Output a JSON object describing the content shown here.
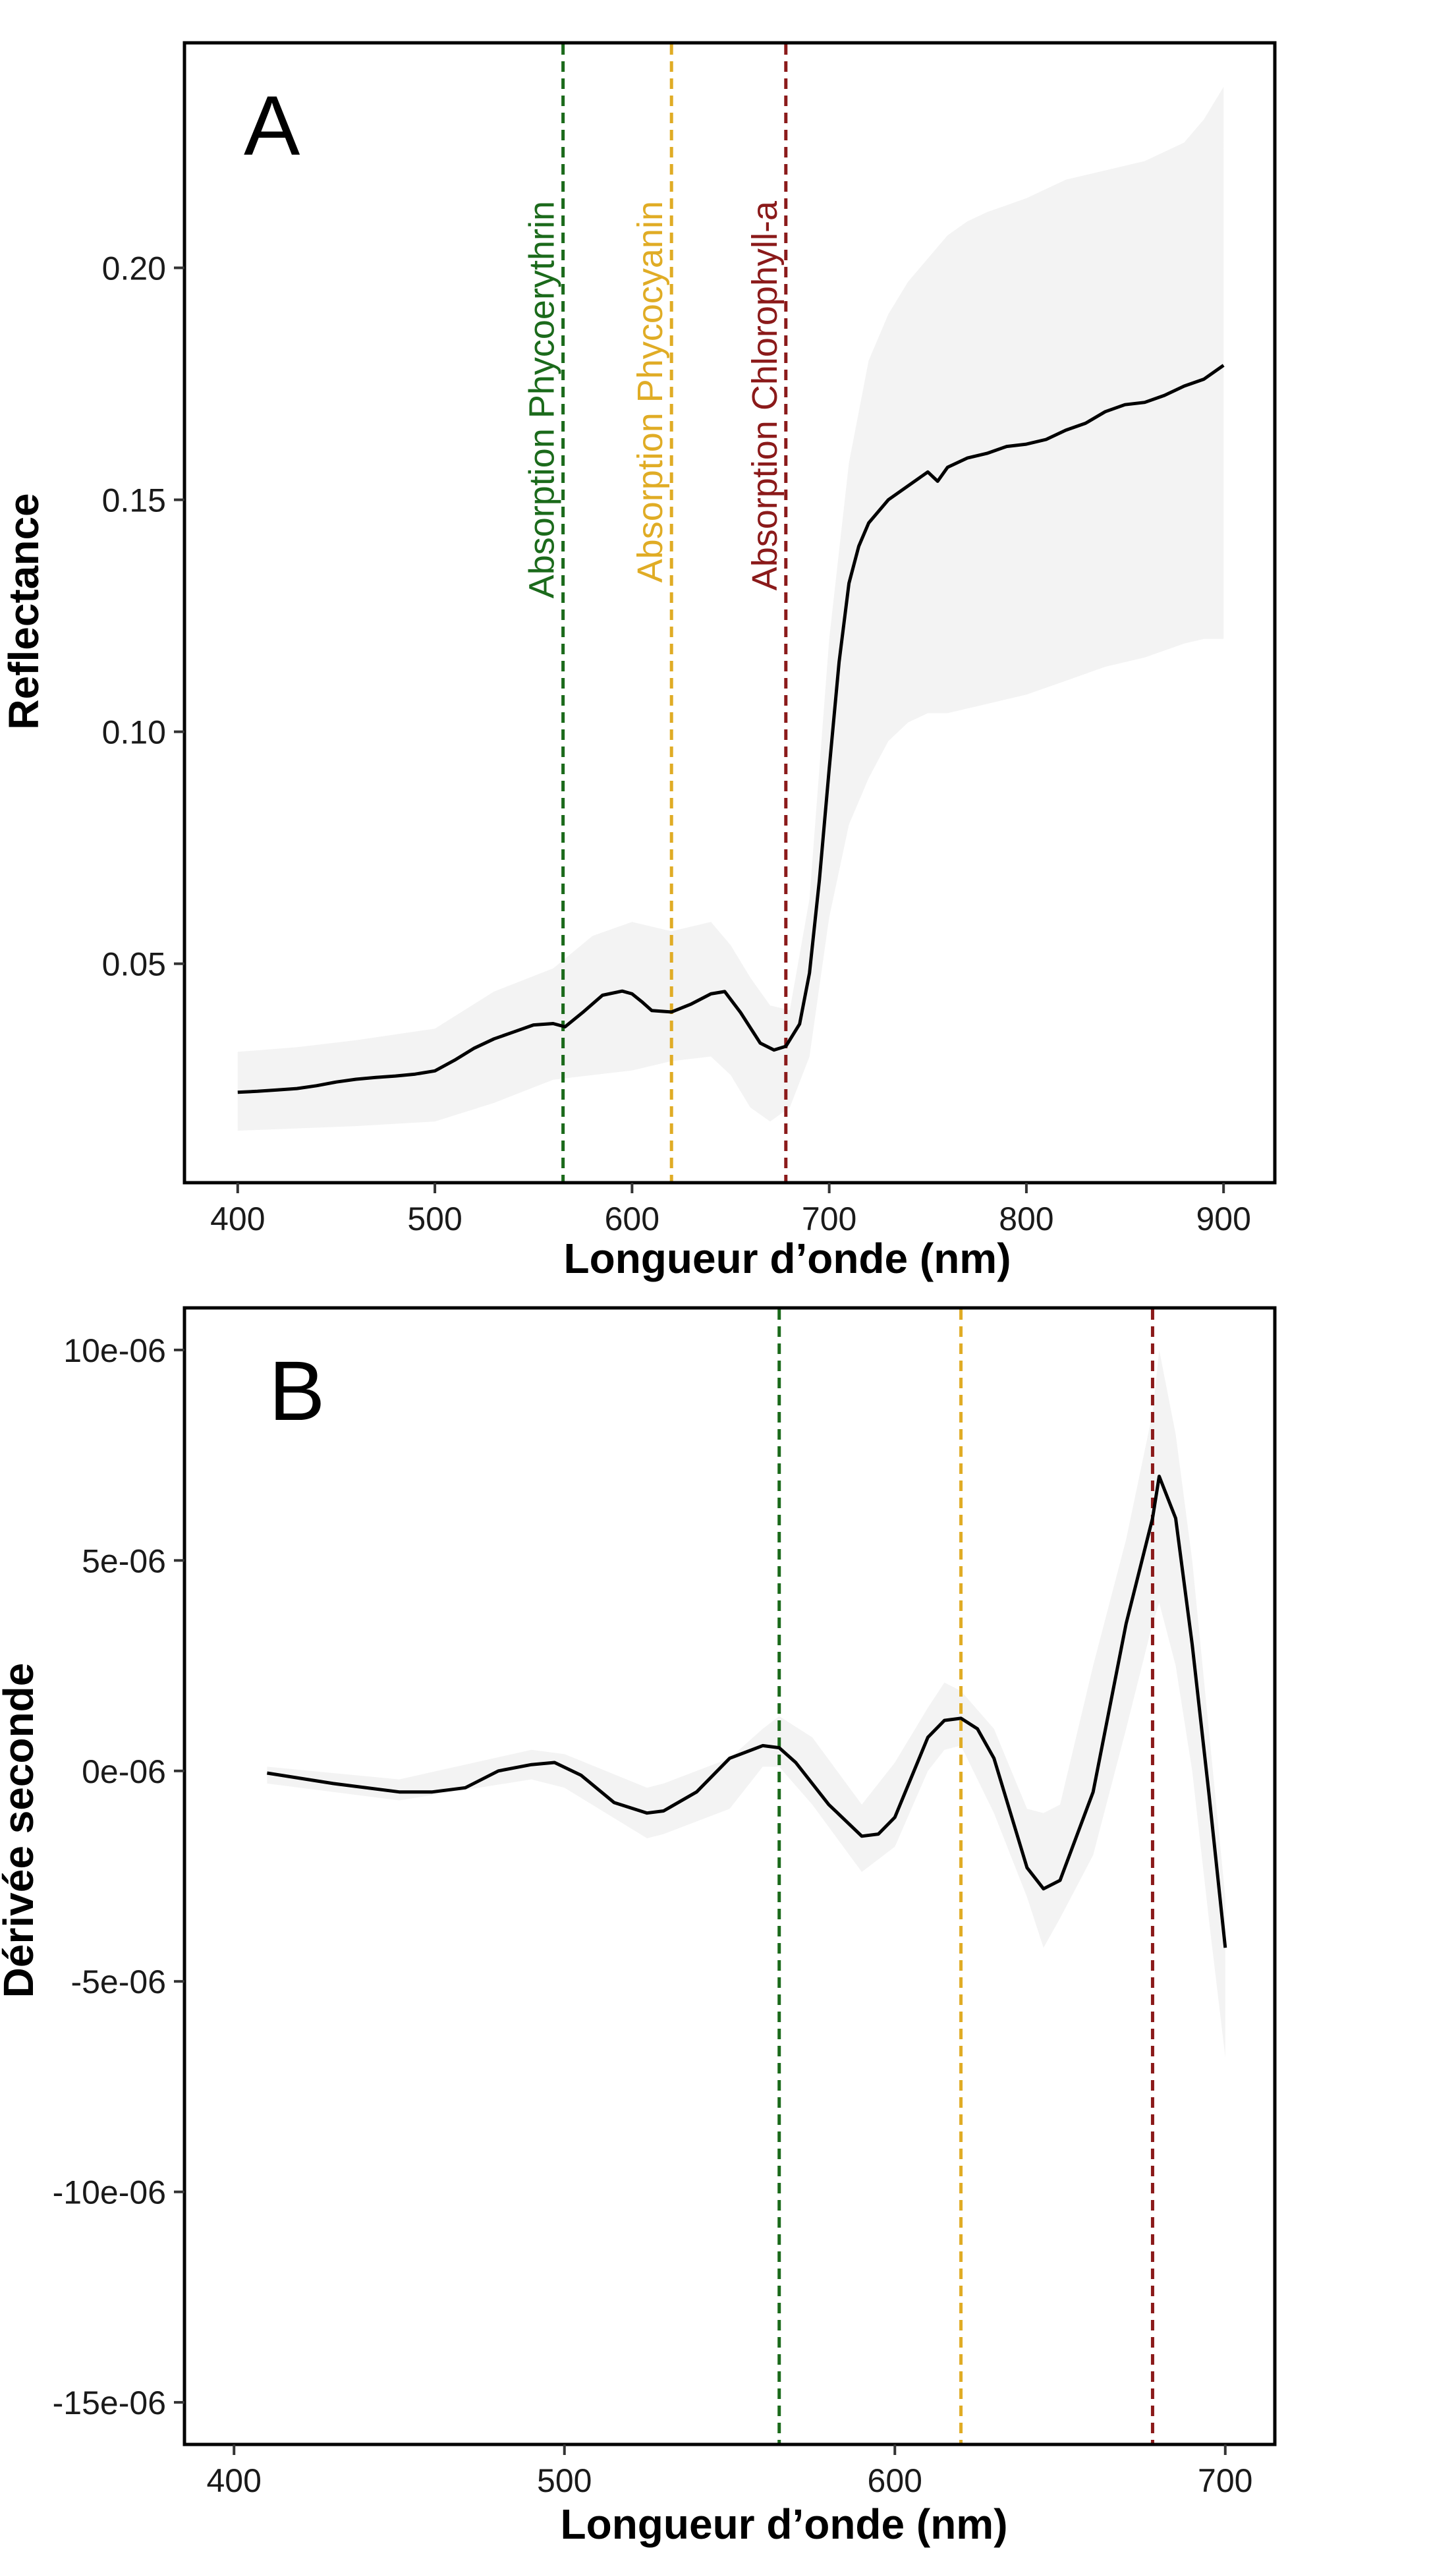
{
  "chart_data": [
    {
      "type": "line",
      "panel_label": "A",
      "xlabel": "Longueur d’onde (nm)",
      "ylabel": "Reflectance",
      "xlim": [
        373,
        926
      ],
      "ylim": [
        0.0028,
        0.2485
      ],
      "xticks": [
        400,
        500,
        600,
        700,
        800,
        900
      ],
      "yticks": [
        0.05,
        0.1,
        0.15,
        0.2
      ],
      "ytick_labels": [
        "0.05",
        "0.10",
        "0.15",
        "0.20"
      ],
      "grid": false,
      "series": [
        {
          "x": [
            400,
            410,
            420,
            430,
            440,
            450,
            460,
            470,
            480,
            490,
            500,
            510,
            520,
            530,
            540,
            550,
            560,
            566,
            575,
            585,
            595,
            600,
            605,
            610,
            620,
            630,
            640,
            647,
            655,
            665,
            672,
            678,
            685,
            690,
            695,
            700,
            705,
            710,
            715,
            720,
            730,
            740,
            750,
            755,
            760,
            770,
            780,
            790,
            800,
            810,
            820,
            830,
            840,
            850,
            860,
            870,
            880,
            890,
            900
          ],
          "y": [
            0.0223,
            0.0225,
            0.0228,
            0.0231,
            0.0237,
            0.0245,
            0.0251,
            0.0255,
            0.0258,
            0.0262,
            0.0269,
            0.0292,
            0.0318,
            0.0338,
            0.0353,
            0.0368,
            0.0371,
            0.0364,
            0.0395,
            0.0432,
            0.0441,
            0.0435,
            0.0418,
            0.0399,
            0.0396,
            0.0413,
            0.0435,
            0.044,
            0.0395,
            0.0329,
            0.0314,
            0.0322,
            0.037,
            0.048,
            0.068,
            0.092,
            0.115,
            0.132,
            0.14,
            0.145,
            0.15,
            0.153,
            0.156,
            0.154,
            0.157,
            0.159,
            0.16,
            0.1615,
            0.162,
            0.163,
            0.165,
            0.1665,
            0.169,
            0.1705,
            0.171,
            0.1725,
            0.1745,
            0.176,
            0.179
          ]
        }
      ],
      "band": {
        "x": [
          400,
          430,
          460,
          500,
          530,
          560,
          580,
          600,
          620,
          640,
          650,
          660,
          670,
          680,
          690,
          700,
          710,
          720,
          730,
          740,
          750,
          760,
          770,
          780,
          800,
          820,
          840,
          860,
          880,
          890,
          900
        ],
        "lower": [
          0.014,
          0.0145,
          0.015,
          0.016,
          0.02,
          0.025,
          0.026,
          0.027,
          0.029,
          0.03,
          0.026,
          0.019,
          0.016,
          0.019,
          0.03,
          0.06,
          0.08,
          0.09,
          0.098,
          0.102,
          0.104,
          0.104,
          0.105,
          0.106,
          0.108,
          0.111,
          0.114,
          0.116,
          0.119,
          0.12,
          0.12
        ],
        "upper": [
          0.031,
          0.032,
          0.0335,
          0.036,
          0.044,
          0.049,
          0.056,
          0.059,
          0.057,
          0.059,
          0.054,
          0.047,
          0.041,
          0.04,
          0.064,
          0.12,
          0.158,
          0.18,
          0.19,
          0.197,
          0.202,
          0.207,
          0.21,
          0.212,
          0.215,
          0.219,
          0.221,
          0.223,
          0.227,
          0.232,
          0.239
        ]
      },
      "vlines": [
        {
          "x": 565,
          "color": "#1b6a1b",
          "label": "Absorption Phycoerythrin"
        },
        {
          "x": 620,
          "color": "#e0ac25",
          "label": "Absorption Phycocyanin"
        },
        {
          "x": 678,
          "color": "#8b1a1a",
          "label": "Absorption Chlorophyll-a"
        }
      ]
    },
    {
      "type": "line",
      "panel_label": "B",
      "xlabel": "Longueur d’onde (nm)",
      "ylabel": "Dérivée seconde",
      "xlim": [
        385,
        715
      ],
      "ylim": [
        -1.6e-05,
        1.1e-05
      ],
      "xticks": [
        400,
        500,
        600,
        700
      ],
      "yticks": [
        1e-05,
        5e-06,
        0,
        -5e-06,
        -1e-05,
        -1.5e-05
      ],
      "ytick_labels": [
        "10e-06",
        "5e-06",
        "0e-06",
        "-5e-06",
        "-10e-06",
        "-15e-06"
      ],
      "grid": false,
      "series": [
        {
          "x": [
            410,
            430,
            450,
            460,
            470,
            480,
            490,
            497,
            505,
            515,
            525,
            530,
            540,
            550,
            560,
            565,
            570,
            580,
            590,
            595,
            600,
            610,
            615,
            620,
            625,
            630,
            640,
            645,
            650,
            660,
            670,
            678,
            680,
            685,
            690,
            695,
            700
          ],
          "y": [
            -5e-08,
            -3e-07,
            -5e-07,
            -5e-07,
            -4e-07,
            0.0,
            1.5e-07,
            2e-07,
            -1e-07,
            -7.5e-07,
            -1e-06,
            -9.5e-07,
            -5e-07,
            3e-07,
            6e-07,
            5.5e-07,
            2e-07,
            -8e-07,
            -1.55e-06,
            -1.5e-06,
            -1.1e-06,
            8e-07,
            1.2e-06,
            1.25e-06,
            1e-06,
            3e-07,
            -2.3e-06,
            -2.8e-06,
            -2.6e-06,
            -5e-07,
            3.5e-06,
            6e-06,
            7e-06,
            6e-06,
            3e-06,
            -5e-07,
            -4.2e-06
          ]
        }
      ],
      "band": {
        "x": [
          410,
          450,
          490,
          500,
          525,
          530,
          550,
          560,
          565,
          575,
          590,
          600,
          610,
          615,
          620,
          630,
          640,
          645,
          650,
          660,
          670,
          678,
          680,
          685,
          690,
          695,
          700
        ],
        "lower": [
          -3e-07,
          -7e-07,
          -2e-07,
          -4e-07,
          -1.6e-06,
          -1.5e-06,
          -9e-07,
          1e-07,
          1e-07,
          -8e-07,
          -2.4e-06,
          -1.8e-06,
          0.0,
          5e-07,
          6e-07,
          -1e-06,
          -3e-06,
          -4.2e-06,
          -3.5e-06,
          -2e-06,
          1e-06,
          3.5e-06,
          4e-06,
          2.5e-06,
          0.0,
          -3.5e-06,
          -6.8e-06
        ],
        "upper": [
          1e-07,
          -2e-07,
          5e-07,
          4e-07,
          -4e-07,
          -3e-07,
          3e-07,
          1e-06,
          1.3e-06,
          8e-07,
          -8e-07,
          2e-07,
          1.5e-06,
          2.1e-06,
          1.9e-06,
          1e-06,
          -9e-07,
          -1e-06,
          -8e-07,
          2.5e-06,
          5.5e-06,
          8.5e-06,
          1e-05,
          8e-06,
          5e-06,
          1e-06,
          -3e-06
        ]
      },
      "vlines": [
        {
          "x": 565,
          "color": "#1b6a1b"
        },
        {
          "x": 620,
          "color": "#e0ac25"
        },
        {
          "x": 678,
          "color": "#8b1a1a"
        }
      ]
    }
  ]
}
